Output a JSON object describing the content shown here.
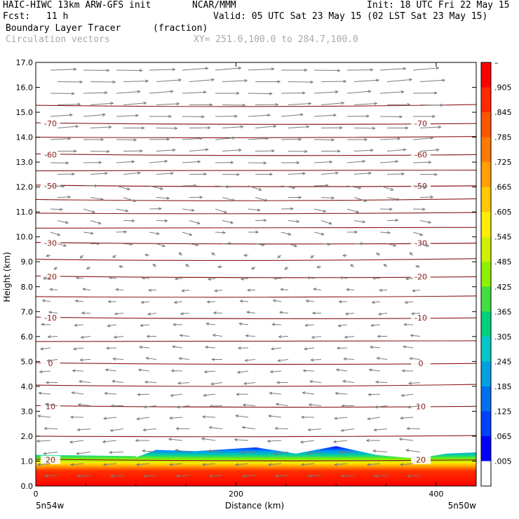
{
  "header": {
    "model": "HAIC-HIWC 13km ARW-GFS init",
    "org": "NCAR/MMM",
    "init": "Init: 18 UTC Fri 22 May 15",
    "fcst_label": "Fcst:",
    "fcst_value": "11 h",
    "valid": "Valid: 05 UTC Sat 23 May 15 (02 LST Sat 23 May 15)",
    "field": "Boundary Layer Tracer",
    "field_units": "(fraction)",
    "vectors": "Circulation vectors",
    "xsec": "XY= 251.0,100.0 to 284.7,100.0"
  },
  "colors": {
    "contour": "#8b1a1a",
    "vector": "#7a7a7a",
    "text_gray": "#a8a8a8"
  },
  "chart_data": {
    "type": "heatmap",
    "xlabel": "Distance (km)",
    "ylabel": "Height (km)",
    "xlim": [
      0,
      440
    ],
    "ylim": [
      0,
      17
    ],
    "x_ticks": [
      0,
      200,
      400
    ],
    "x_tick_labels": [
      "0",
      "200",
      "400"
    ],
    "y_ticks": [
      0,
      1,
      2,
      3,
      4,
      5,
      6,
      7,
      8,
      9,
      10,
      11,
      12,
      13,
      14,
      15,
      16,
      17
    ],
    "y_tick_labels": [
      "0.0",
      "1.0",
      "2.0",
      "3.0",
      "4.0",
      "5.0",
      "6.0",
      "7.0",
      "8.0",
      "9.0",
      "10.0",
      "11.0",
      "12.0",
      "13.0",
      "14.0",
      "15.0",
      "16.0",
      "17.0"
    ],
    "endpoints": {
      "left": "5n54w",
      "right": "5n50w"
    },
    "colorbar": {
      "labels": [
        "–",
        ".905",
        ".845",
        ".785",
        ".725",
        ".665",
        ".605",
        ".545",
        ".485",
        ".425",
        ".365",
        ".305",
        ".245",
        ".185",
        ".125",
        ".065",
        ".005"
      ],
      "colors": [
        "#ff0000",
        "#ff2a00",
        "#ff5500",
        "#ff7a00",
        "#ffa000",
        "#ffc800",
        "#ffee00",
        "#d0f000",
        "#90f000",
        "#40e040",
        "#00d080",
        "#00c8c8",
        "#00a0e0",
        "#0070f0",
        "#0040ff",
        "#0000ff",
        "#ffffff"
      ]
    },
    "contours": [
      {
        "label": "-70",
        "height": 14.55
      },
      {
        "label": "-60",
        "height": 13.3
      },
      {
        "label": "-50",
        "height": 12.05
      },
      {
        "label": "-30",
        "height": 9.75
      },
      {
        "label": "-20",
        "height": 8.4
      },
      {
        "label": "-10",
        "height": 6.75
      },
      {
        "label": "0",
        "height": 4.92
      },
      {
        "label": "10",
        "height": 3.2
      },
      {
        "label": "20",
        "height": 1.05
      }
    ],
    "tracer_top": [
      {
        "x": 0,
        "h": 1.25
      },
      {
        "x": 100,
        "h": 1.2
      },
      {
        "x": 100,
        "h": 1.15
      },
      {
        "x": 120,
        "h": 1.45
      },
      {
        "x": 160,
        "h": 1.4
      },
      {
        "x": 220,
        "h": 1.55
      },
      {
        "x": 260,
        "h": 1.3
      },
      {
        "x": 300,
        "h": 1.6
      },
      {
        "x": 340,
        "h": 1.25
      },
      {
        "x": 380,
        "h": 1.1
      },
      {
        "x": 410,
        "h": 1.3
      },
      {
        "x": 440,
        "h": 1.35
      }
    ]
  }
}
